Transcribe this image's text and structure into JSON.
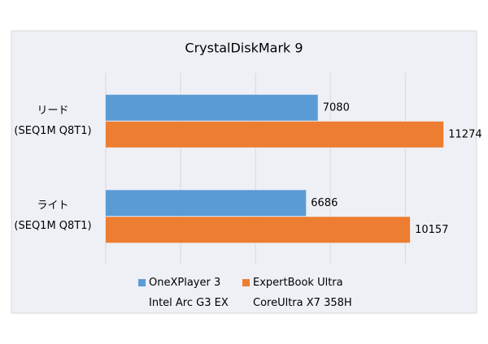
{
  "chart_data": {
    "type": "hbar",
    "title": "CrystalDiskMark 9",
    "categories": [
      "リード\n(SEQ1M Q8T1)",
      "ライト\n(SEQ1M Q8T1)"
    ],
    "series": [
      {
        "name": "OneXPlayer 3\nIntel Arc G3 EX",
        "color": "#5b9bd5",
        "values": [
          7080,
          6686
        ]
      },
      {
        "name": "ExpertBook Ultra\nCoreUltra X7 358H",
        "color": "#ed7d31",
        "values": [
          11274,
          10157
        ]
      }
    ],
    "xlim": [
      0,
      12000
    ],
    "xticks": [
      0,
      2500,
      5000,
      7500,
      10000
    ],
    "grid": true,
    "legend": "bottom"
  }
}
